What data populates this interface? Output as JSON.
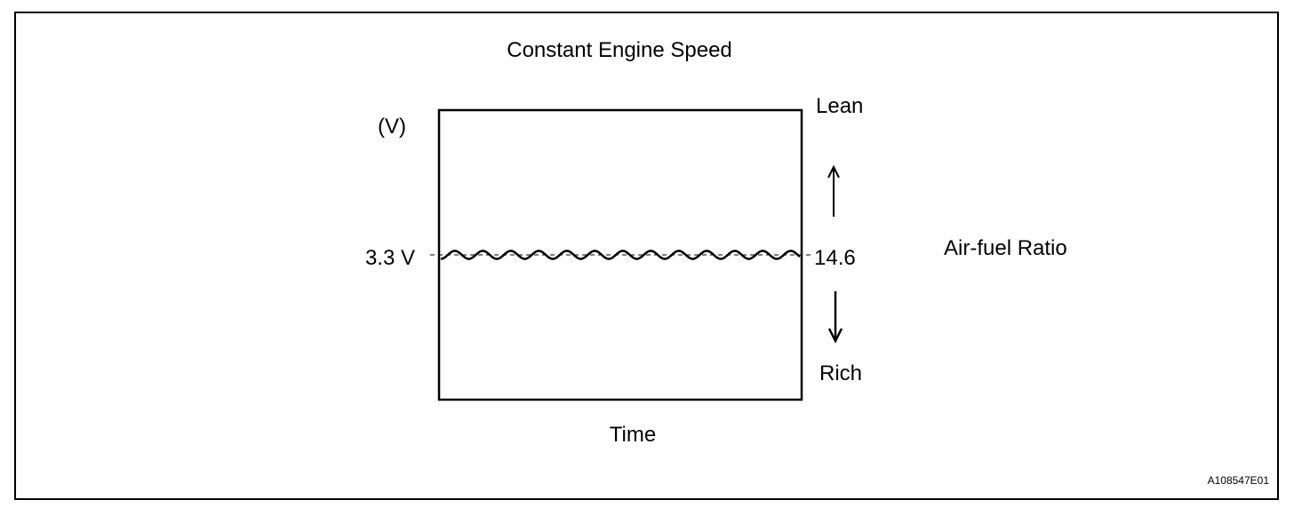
{
  "diagram": {
    "title": "Constant Engine Speed",
    "y_unit": "(V)",
    "voltage_label": "3.3 V",
    "ratio_value": "14.6",
    "lean_label": "Lean",
    "rich_label": "Rich",
    "ratio_label": "Air-fuel Ratio",
    "x_label": "Time",
    "figure_id": "A108547E01"
  },
  "colors": {
    "line": "#000000",
    "background": "#ffffff"
  }
}
